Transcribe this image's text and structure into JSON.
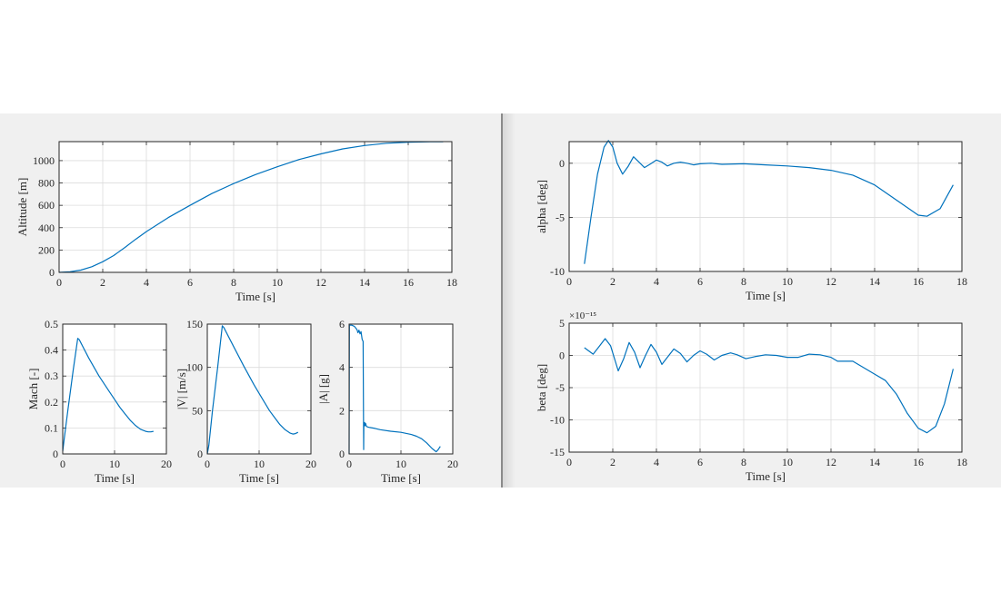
{
  "colors": {
    "line": "#0072BD",
    "grid": "#dcdcdc",
    "axes": "#262626",
    "background": "#f0f0f0"
  },
  "chart_data": [
    {
      "id": "altitude",
      "type": "line",
      "title": "",
      "xlabel": "Time [s]",
      "ylabel": "Altitude [m]",
      "xlim": [
        0,
        18
      ],
      "ylim": [
        0,
        1170
      ],
      "xticks": [
        0,
        2,
        4,
        6,
        8,
        10,
        12,
        14,
        16,
        18
      ],
      "yticks": [
        0,
        200,
        400,
        600,
        800,
        1000
      ],
      "grid": true,
      "x": [
        0,
        0.5,
        1,
        1.5,
        2,
        2.5,
        3,
        3.5,
        4,
        5,
        6,
        7,
        8,
        9,
        10,
        11,
        12,
        13,
        14,
        15,
        16,
        17,
        17.6
      ],
      "y": [
        0,
        5,
        20,
        50,
        95,
        150,
        220,
        295,
        365,
        490,
        600,
        705,
        795,
        875,
        945,
        1010,
        1060,
        1105,
        1135,
        1155,
        1165,
        1168,
        1168
      ]
    },
    {
      "id": "mach",
      "type": "line",
      "xlabel": "Time [s]",
      "ylabel": "Mach [-]",
      "xlim": [
        0,
        20
      ],
      "ylim": [
        0,
        0.5
      ],
      "xticks": [
        0,
        10,
        20
      ],
      "yticks": [
        0,
        0.1,
        0.2,
        0.3,
        0.4,
        0.5
      ],
      "grid": true,
      "x": [
        0,
        0.3,
        1,
        2,
        2.9,
        3.2,
        5,
        7,
        9,
        10,
        11,
        12,
        13,
        14,
        15,
        16,
        16.5,
        17,
        17.5
      ],
      "y": [
        0.01,
        0.06,
        0.17,
        0.32,
        0.445,
        0.44,
        0.37,
        0.3,
        0.24,
        0.21,
        0.18,
        0.155,
        0.13,
        0.11,
        0.095,
        0.087,
        0.085,
        0.085,
        0.087
      ]
    },
    {
      "id": "velocity",
      "type": "line",
      "xlabel": "Time [s]",
      "ylabel": "|V| [m/s]",
      "xlim": [
        0,
        20
      ],
      "ylim": [
        0,
        150
      ],
      "xticks": [
        0,
        10,
        20
      ],
      "yticks": [
        0,
        50,
        100,
        150
      ],
      "grid": true,
      "x": [
        0,
        0.3,
        1,
        2,
        2.9,
        3.2,
        5,
        7,
        9,
        10,
        11,
        12,
        13,
        14,
        15,
        16,
        16.5,
        17,
        17.5
      ],
      "y": [
        0,
        10,
        50,
        100,
        148,
        146,
        125,
        102,
        80,
        70,
        60,
        50,
        42,
        34,
        28,
        24,
        23,
        23.5,
        25
      ]
    },
    {
      "id": "acceleration",
      "type": "line",
      "xlabel": "Time [s]",
      "ylabel": "|A| [g]",
      "xlim": [
        0,
        20
      ],
      "ylim": [
        0,
        6
      ],
      "xticks": [
        0,
        10,
        20
      ],
      "yticks": [
        0,
        2,
        4,
        6
      ],
      "grid": true,
      "x": [
        0,
        0.05,
        0.5,
        1,
        1.5,
        1.7,
        1.9,
        2.1,
        2.3,
        2.5,
        2.7,
        2.8,
        2.85,
        2.9,
        3.0,
        3.1,
        3.2,
        3.3,
        3.5,
        4,
        5,
        6,
        8,
        10,
        12,
        13,
        14,
        15,
        16,
        16.8,
        17.2,
        17.6
      ],
      "y": [
        0,
        5.95,
        5.95,
        5.9,
        5.75,
        5.6,
        5.72,
        5.55,
        5.65,
        5.3,
        5.2,
        0.2,
        1.45,
        1.3,
        1.45,
        1.3,
        1.4,
        1.3,
        1.25,
        1.22,
        1.18,
        1.12,
        1.05,
        1.0,
        0.9,
        0.82,
        0.7,
        0.5,
        0.25,
        0.1,
        0.2,
        0.35
      ]
    },
    {
      "id": "alpha",
      "type": "line",
      "xlabel": "Time [s]",
      "ylabel": "alpha [deg]",
      "xlim": [
        0,
        18
      ],
      "ylim": [
        -10,
        2
      ],
      "xticks": [
        0,
        2,
        4,
        6,
        8,
        10,
        12,
        14,
        16,
        18
      ],
      "yticks": [
        -10,
        -5,
        0
      ],
      "grid": true,
      "x": [
        0.7,
        1.0,
        1.3,
        1.6,
        1.8,
        2.0,
        2.2,
        2.45,
        2.7,
        2.95,
        3.2,
        3.45,
        3.7,
        4.0,
        4.25,
        4.5,
        4.8,
        5.1,
        5.4,
        5.7,
        6,
        6.5,
        7,
        8,
        9,
        10,
        11,
        12,
        13,
        14,
        15,
        16,
        16.4,
        17,
        17.6
      ],
      "y": [
        -9.3,
        -5,
        -1,
        1.5,
        2.1,
        1.5,
        0,
        -1.0,
        -0.3,
        0.6,
        0.1,
        -0.4,
        -0.1,
        0.3,
        0.1,
        -0.25,
        0,
        0.1,
        0,
        -0.15,
        -0.05,
        0,
        -0.1,
        -0.05,
        -0.15,
        -0.25,
        -0.4,
        -0.65,
        -1.1,
        -2.0,
        -3.4,
        -4.8,
        -4.9,
        -4.2,
        -2.0
      ]
    },
    {
      "id": "beta",
      "type": "line",
      "xlabel": "Time [s]",
      "ylabel": "beta [deg]",
      "exponent_label": "×10⁻¹⁵",
      "xlim": [
        0,
        18
      ],
      "ylim": [
        -15,
        5
      ],
      "xticks": [
        0,
        2,
        4,
        6,
        8,
        10,
        12,
        14,
        16,
        18
      ],
      "yticks": [
        -15,
        -10,
        -5,
        0,
        5
      ],
      "grid": true,
      "x": [
        0.7,
        1.1,
        1.4,
        1.65,
        1.9,
        2.25,
        2.5,
        2.75,
        3.0,
        3.25,
        3.5,
        3.75,
        4.0,
        4.25,
        4.5,
        4.8,
        5.1,
        5.4,
        5.7,
        6.0,
        6.3,
        6.65,
        7.0,
        7.4,
        7.7,
        8.1,
        8.5,
        9,
        9.5,
        10,
        10.5,
        11,
        11.5,
        12,
        12.3,
        13,
        14,
        14.5,
        15,
        15.5,
        16,
        16.4,
        16.8,
        17.2,
        17.6
      ],
      "y": [
        1.2,
        0.2,
        1.5,
        2.6,
        1.5,
        -2.4,
        -0.5,
        2.0,
        0.5,
        -1.9,
        0,
        1.7,
        0.5,
        -1.4,
        -0.3,
        1.0,
        0.3,
        -1.0,
        0,
        0.7,
        0.2,
        -0.7,
        0,
        0.4,
        0.1,
        -0.5,
        -0.2,
        0.1,
        0,
        -0.3,
        -0.3,
        0.2,
        0.1,
        -0.3,
        -0.9,
        -0.9,
        -2.9,
        -3.9,
        -6,
        -9,
        -11.3,
        -12,
        -11,
        -7.5,
        -2.1
      ]
    }
  ]
}
